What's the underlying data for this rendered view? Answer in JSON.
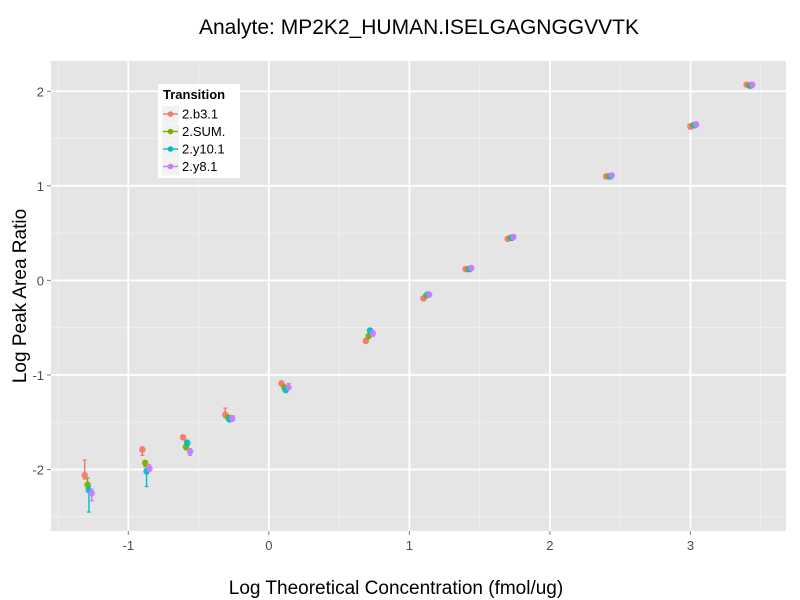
{
  "chart_data": {
    "type": "scatter",
    "title": "Analyte: MP2K2_HUMAN.ISELGAGNGGVVTK",
    "xlabel": "Log Theoretical Concentration (fmol/ug)",
    "ylabel": "Log Peak Area Ratio",
    "xlim": [
      -1.55,
      3.68
    ],
    "ylim": [
      -2.65,
      2.32
    ],
    "xticks": [
      -1,
      0,
      1,
      2,
      3
    ],
    "xtick_labels": [
      "-1",
      "0",
      "1",
      "2",
      "3"
    ],
    "yticks": [
      -2,
      -1,
      0,
      1,
      2
    ],
    "ytick_labels": [
      "-2",
      "-1",
      "0",
      "1",
      "2"
    ],
    "grid": true,
    "legend": {
      "title": "Transition",
      "position": "top-left-inside"
    },
    "series": [
      {
        "name": "2.b3.1",
        "color": "#F8766D",
        "points": [
          {
            "x": -1.31,
            "y": -2.06,
            "lo": -2.1,
            "hi": -1.9
          },
          {
            "x": -0.9,
            "y": -1.79,
            "lo": -1.85,
            "hi": -1.76
          },
          {
            "x": -0.61,
            "y": -1.66,
            "lo": -1.68,
            "hi": -1.64
          },
          {
            "x": -0.31,
            "y": -1.42,
            "lo": -1.45,
            "hi": -1.35
          },
          {
            "x": 0.09,
            "y": -1.09,
            "lo": -1.11,
            "hi": -1.07
          },
          {
            "x": 0.69,
            "y": -0.64,
            "lo": -0.66,
            "hi": -0.62
          },
          {
            "x": 1.1,
            "y": -0.19,
            "lo": -0.21,
            "hi": -0.17
          },
          {
            "x": 1.4,
            "y": 0.12,
            "lo": 0.11,
            "hi": 0.13
          },
          {
            "x": 1.7,
            "y": 0.44,
            "lo": 0.43,
            "hi": 0.45
          },
          {
            "x": 2.4,
            "y": 1.1,
            "lo": 1.09,
            "hi": 1.11
          },
          {
            "x": 3.0,
            "y": 1.63,
            "lo": 1.6,
            "hi": 1.65
          },
          {
            "x": 3.4,
            "y": 2.07,
            "lo": 2.06,
            "hi": 2.08
          }
        ]
      },
      {
        "name": "2.SUM.",
        "color": "#7CAE00",
        "points": [
          {
            "x": -1.29,
            "y": -2.16,
            "lo": -2.2,
            "hi": -2.09
          },
          {
            "x": -0.88,
            "y": -1.93,
            "lo": -1.97,
            "hi": -1.91
          },
          {
            "x": -0.59,
            "y": -1.76,
            "lo": -1.79,
            "hi": -1.7
          },
          {
            "x": -0.29,
            "y": -1.45,
            "lo": -1.47,
            "hi": -1.43
          },
          {
            "x": 0.11,
            "y": -1.13,
            "lo": -1.15,
            "hi": -1.11
          },
          {
            "x": 0.71,
            "y": -0.59,
            "lo": -0.61,
            "hi": -0.57
          },
          {
            "x": 1.12,
            "y": -0.16,
            "lo": -0.17,
            "hi": -0.15
          },
          {
            "x": 1.42,
            "y": 0.12,
            "lo": 0.11,
            "hi": 0.13
          },
          {
            "x": 1.72,
            "y": 0.45,
            "lo": 0.44,
            "hi": 0.46
          },
          {
            "x": 2.42,
            "y": 1.1,
            "lo": 1.09,
            "hi": 1.11
          },
          {
            "x": 3.02,
            "y": 1.64,
            "lo": 1.63,
            "hi": 1.65
          },
          {
            "x": 3.42,
            "y": 2.06,
            "lo": 2.05,
            "hi": 2.07
          }
        ]
      },
      {
        "name": "2.y10.1",
        "color": "#00BFC4",
        "points": [
          {
            "x": -1.28,
            "y": -2.22,
            "lo": -2.45,
            "hi": -2.18
          },
          {
            "x": -0.87,
            "y": -2.02,
            "lo": -2.18,
            "hi": -1.99
          },
          {
            "x": -0.58,
            "y": -1.72,
            "lo": -1.74,
            "hi": -1.69
          },
          {
            "x": -0.28,
            "y": -1.47,
            "lo": -1.49,
            "hi": -1.45
          },
          {
            "x": 0.12,
            "y": -1.16,
            "lo": -1.18,
            "hi": -1.14
          },
          {
            "x": 0.72,
            "y": -0.53,
            "lo": -0.55,
            "hi": -0.51
          },
          {
            "x": 1.13,
            "y": -0.15,
            "lo": -0.16,
            "hi": -0.14
          },
          {
            "x": 1.43,
            "y": 0.12,
            "lo": 0.11,
            "hi": 0.13
          },
          {
            "x": 1.73,
            "y": 0.45,
            "lo": 0.44,
            "hi": 0.46
          },
          {
            "x": 2.43,
            "y": 1.1,
            "lo": 1.09,
            "hi": 1.11
          },
          {
            "x": 3.03,
            "y": 1.64,
            "lo": 1.63,
            "hi": 1.65
          },
          {
            "x": 3.43,
            "y": 2.06,
            "lo": 2.05,
            "hi": 2.07
          }
        ]
      },
      {
        "name": "2.y8.1",
        "color": "#C77CFF",
        "points": [
          {
            "x": -1.26,
            "y": -2.25,
            "lo": -2.33,
            "hi": -2.21
          },
          {
            "x": -0.85,
            "y": -1.99,
            "lo": -2.02,
            "hi": -1.95
          },
          {
            "x": -0.56,
            "y": -1.81,
            "lo": -1.85,
            "hi": -1.78
          },
          {
            "x": -0.26,
            "y": -1.46,
            "lo": -1.49,
            "hi": -1.43
          },
          {
            "x": 0.14,
            "y": -1.13,
            "lo": -1.15,
            "hi": -1.09
          },
          {
            "x": 0.74,
            "y": -0.56,
            "lo": -0.59,
            "hi": -0.53
          },
          {
            "x": 1.14,
            "y": -0.15,
            "lo": -0.16,
            "hi": -0.14
          },
          {
            "x": 1.44,
            "y": 0.13,
            "lo": 0.12,
            "hi": 0.14
          },
          {
            "x": 1.74,
            "y": 0.46,
            "lo": 0.45,
            "hi": 0.47
          },
          {
            "x": 2.44,
            "y": 1.11,
            "lo": 1.1,
            "hi": 1.12
          },
          {
            "x": 3.04,
            "y": 1.65,
            "lo": 1.64,
            "hi": 1.66
          },
          {
            "x": 3.44,
            "y": 2.07,
            "lo": 2.06,
            "hi": 2.08
          }
        ]
      }
    ]
  }
}
